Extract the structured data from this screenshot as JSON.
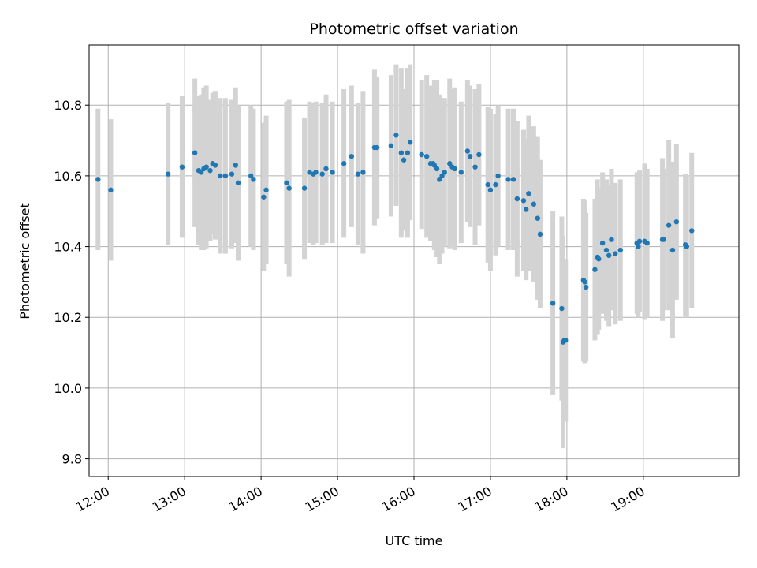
{
  "chart_data": {
    "type": "scatter",
    "title": "Photometric offset variation",
    "xlabel": "UTC time",
    "ylabel": "Photometric offset",
    "x_unit": "UTC hours",
    "xlim": [
      "11:45",
      "20:15"
    ],
    "ylim": [
      9.75,
      10.97
    ],
    "grid": true,
    "x_ticks": [
      "12:00",
      "13:00",
      "14:00",
      "15:00",
      "16:00",
      "17:00",
      "18:00",
      "19:00"
    ],
    "y_ticks": [
      "9.8",
      "10.0",
      "10.2",
      "10.4",
      "10.6",
      "10.8"
    ],
    "colors": {
      "marker": "#1f77b4",
      "errorbar": "#d3d3d3",
      "grid": "#b0b0b0"
    },
    "series": [
      {
        "x": [
          "11:52",
          "12:02",
          "12:47",
          "12:58",
          "13:08",
          "13:11",
          "13:13",
          "13:15",
          "13:17",
          "13:20",
          "13:22",
          "13:24",
          "13:28",
          "13:32",
          "13:37",
          "13:40",
          "13:42",
          "13:52",
          "13:54",
          "14:02",
          "14:04",
          "14:20",
          "14:22",
          "14:34",
          "14:38",
          "14:41",
          "14:43",
          "14:48",
          "14:51",
          "14:56",
          "15:05",
          "15:11",
          "15:16",
          "15:20",
          "15:29",
          "15:31",
          "15:42",
          "15:46",
          "15:50",
          "15:52",
          "15:55",
          "15:57",
          "16:06",
          "16:10",
          "16:13",
          "16:15",
          "16:16",
          "16:18",
          "16:20",
          "16:22",
          "16:24",
          "16:28",
          "16:30",
          "16:32",
          "16:37",
          "16:42",
          "16:44",
          "16:48",
          "16:51",
          "16:58",
          "17:00",
          "17:04",
          "17:06",
          "17:14",
          "17:18",
          "17:21",
          "17:26",
          "17:28",
          "17:30",
          "17:34",
          "17:37",
          "17:39",
          "17:49",
          "17:56",
          "17:57",
          "17:58",
          "17:59",
          "18:13",
          "18:14",
          "18:15",
          "18:22",
          "18:24",
          "18:25",
          "18:28",
          "18:31",
          "18:33",
          "18:35",
          "18:38",
          "18:42",
          "18:55",
          "18:56",
          "18:57",
          "19:01",
          "19:03",
          "19:15",
          "19:16",
          "19:20",
          "19:23",
          "19:26",
          "19:33",
          "19:34",
          "19:38"
        ],
        "y": [
          10.59,
          10.56,
          10.605,
          10.625,
          10.665,
          10.615,
          10.61,
          10.62,
          10.625,
          10.615,
          10.635,
          10.63,
          10.6,
          10.6,
          10.605,
          10.63,
          10.58,
          10.6,
          10.59,
          10.54,
          10.56,
          10.58,
          10.565,
          10.565,
          10.61,
          10.605,
          10.61,
          10.605,
          10.62,
          10.61,
          10.635,
          10.655,
          10.605,
          10.61,
          10.68,
          10.68,
          10.685,
          10.715,
          10.665,
          10.645,
          10.665,
          10.695,
          10.66,
          10.655,
          10.635,
          10.635,
          10.63,
          10.62,
          10.59,
          10.6,
          10.61,
          10.635,
          10.625,
          10.62,
          10.61,
          10.67,
          10.655,
          10.625,
          10.66,
          10.575,
          10.56,
          10.575,
          10.6,
          10.59,
          10.59,
          10.535,
          10.53,
          10.505,
          10.55,
          10.52,
          10.48,
          10.435,
          10.24,
          10.225,
          10.13,
          10.135,
          10.135,
          10.305,
          10.3,
          10.285,
          10.335,
          10.37,
          10.365,
          10.41,
          10.39,
          10.375,
          10.42,
          10.38,
          10.39,
          10.41,
          10.4,
          10.415,
          10.415,
          10.41,
          10.42,
          10.42,
          10.46,
          10.39,
          10.47,
          10.405,
          10.4,
          10.445
        ],
        "err": [
          0.2,
          0.2,
          0.2,
          0.2,
          0.21,
          0.21,
          0.22,
          0.23,
          0.23,
          0.2,
          0.2,
          0.21,
          0.22,
          0.22,
          0.21,
          0.22,
          0.22,
          0.2,
          0.2,
          0.21,
          0.21,
          0.23,
          0.25,
          0.2,
          0.2,
          0.2,
          0.2,
          0.2,
          0.21,
          0.2,
          0.21,
          0.2,
          0.2,
          0.23,
          0.22,
          0.2,
          0.2,
          0.2,
          0.24,
          0.2,
          0.24,
          0.22,
          0.21,
          0.23,
          0.22,
          0.22,
          0.24,
          0.25,
          0.24,
          0.22,
          0.21,
          0.24,
          0.22,
          0.23,
          0.2,
          0.2,
          0.2,
          0.22,
          0.2,
          0.22,
          0.23,
          0.2,
          0.2,
          0.2,
          0.2,
          0.22,
          0.2,
          0.2,
          0.22,
          0.22,
          0.23,
          0.21,
          0.26,
          0.26,
          0.3,
          0.23,
          0.23,
          0.23,
          0.23,
          0.21,
          0.2,
          0.22,
          0.2,
          0.2,
          0.2,
          0.2,
          0.2,
          0.2,
          0.2,
          0.2,
          0.2,
          0.2,
          0.22,
          0.21,
          0.23,
          0.2,
          0.24,
          0.25,
          0.22,
          0.2,
          0.2,
          0.22
        ]
      }
    ]
  }
}
